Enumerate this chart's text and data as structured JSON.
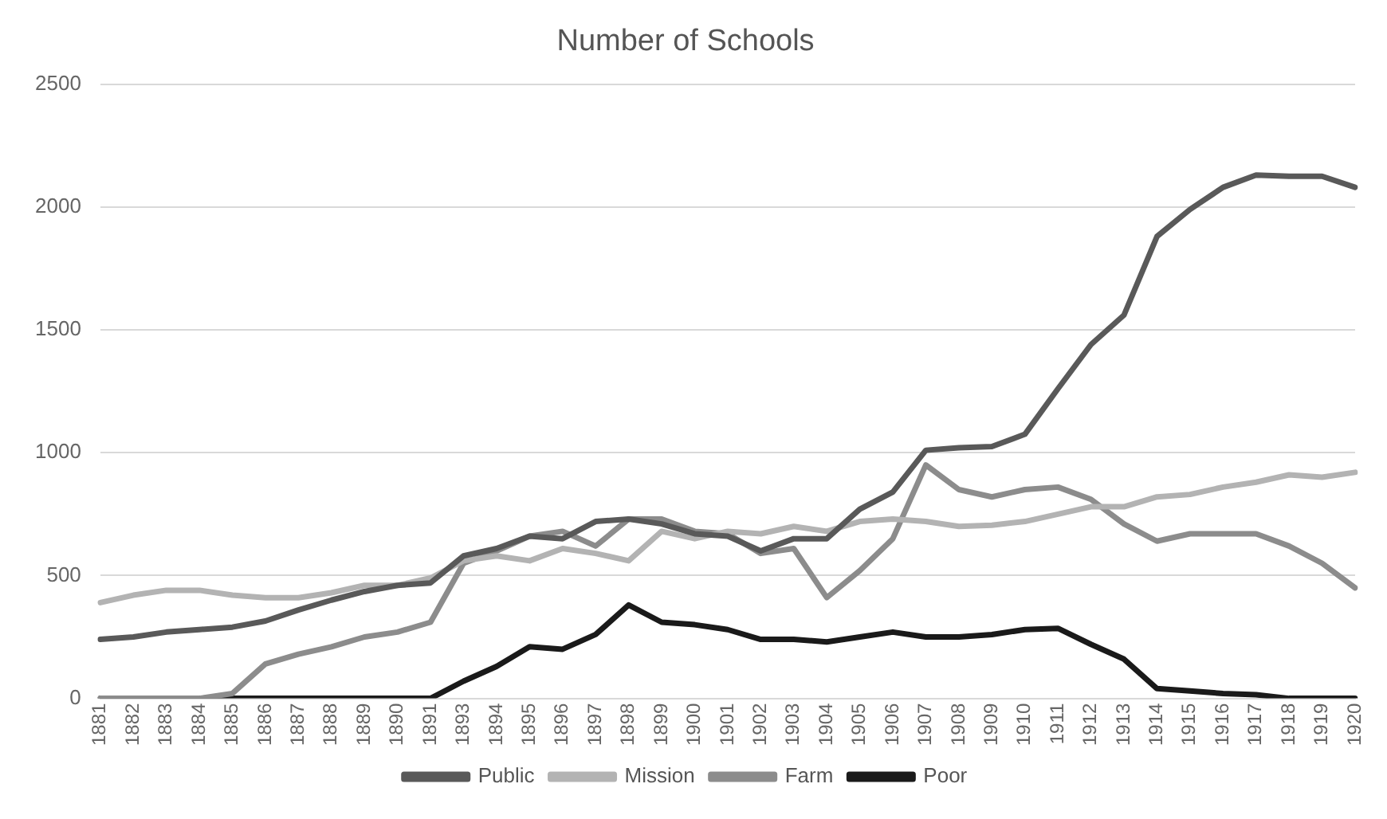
{
  "chart_data": {
    "type": "line",
    "title": "Number of Schools",
    "categories": [
      "1881",
      "1882",
      "1883",
      "1884",
      "1885",
      "1886",
      "1887",
      "1888",
      "1889",
      "1890",
      "1891",
      "1893",
      "1894",
      "1895",
      "1896",
      "1897",
      "1898",
      "1899",
      "1900",
      "1901",
      "1902",
      "1903",
      "1904",
      "1905",
      "1906",
      "1907",
      "1908",
      "1909",
      "1910",
      "1911",
      "1912",
      "1913",
      "1914",
      "1915",
      "1916",
      "1917",
      "1918",
      "1919",
      "1920"
    ],
    "series": [
      {
        "name": "Public",
        "color": "#595959",
        "values": [
          240,
          250,
          270,
          280,
          290,
          315,
          360,
          400,
          435,
          460,
          470,
          580,
          610,
          660,
          650,
          720,
          730,
          710,
          670,
          660,
          600,
          650,
          650,
          770,
          840,
          1010,
          1020,
          1025,
          1075,
          1260,
          1440,
          1560,
          1880,
          1990,
          2080,
          2130,
          2125,
          2125,
          2080
        ]
      },
      {
        "name": "Mission",
        "color": "#b3b3b3",
        "values": [
          390,
          420,
          440,
          440,
          420,
          410,
          410,
          430,
          460,
          460,
          490,
          560,
          580,
          560,
          610,
          590,
          560,
          680,
          650,
          680,
          670,
          700,
          680,
          720,
          730,
          720,
          700,
          705,
          720,
          750,
          780,
          780,
          820,
          830,
          860,
          880,
          910,
          900,
          920
        ]
      },
      {
        "name": "Farm",
        "color": "#8c8c8c",
        "values": [
          0,
          0,
          0,
          0,
          20,
          140,
          180,
          210,
          250,
          270,
          310,
          550,
          600,
          660,
          680,
          620,
          730,
          730,
          680,
          670,
          590,
          610,
          410,
          520,
          650,
          950,
          850,
          820,
          850,
          860,
          810,
          710,
          640,
          670,
          670,
          670,
          620,
          550,
          450
        ]
      },
      {
        "name": "Poor",
        "color": "#1a1a1a",
        "values": [
          0,
          0,
          0,
          0,
          0,
          0,
          0,
          0,
          0,
          0,
          0,
          70,
          130,
          210,
          200,
          260,
          380,
          310,
          300,
          280,
          240,
          240,
          230,
          250,
          270,
          250,
          250,
          260,
          280,
          285,
          220,
          160,
          40,
          30,
          20,
          15,
          0,
          0,
          0
        ]
      }
    ],
    "ylim": [
      0,
      2500
    ],
    "yticks": [
      0,
      500,
      1000,
      1500,
      2000,
      2500
    ],
    "grid": "y",
    "legend": "bottom",
    "marker": "none",
    "line_style": "solid"
  }
}
